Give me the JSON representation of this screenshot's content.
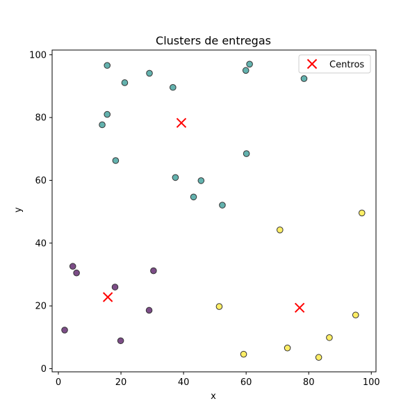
{
  "chart_data": {
    "type": "scatter",
    "title": "Clusters de entregas",
    "xlabel": "x",
    "ylabel": "y",
    "xlim": [
      -2,
      101.5
    ],
    "ylim": [
      -1,
      101.5
    ],
    "xticks": [
      0,
      20,
      40,
      60,
      80,
      100
    ],
    "yticks": [
      0,
      20,
      40,
      60,
      80,
      100
    ],
    "xtick_labels": [
      "0",
      "20",
      "40",
      "60",
      "80",
      "100"
    ],
    "ytick_labels": [
      "0",
      "20",
      "40",
      "60",
      "80",
      "100"
    ],
    "grid": false,
    "legend": {
      "placement": "upper-right",
      "entries": [
        {
          "label": "Centros",
          "marker": "x",
          "color": "#ff0000"
        }
      ]
    },
    "cluster_colors": [
      "#440154",
      "#21918c",
      "#fde725"
    ],
    "points": [
      {
        "x": 2.0,
        "y": 12.3,
        "cluster": 0
      },
      {
        "x": 4.6,
        "y": 32.6,
        "cluster": 0
      },
      {
        "x": 5.8,
        "y": 30.5,
        "cluster": 0
      },
      {
        "x": 18.1,
        "y": 26.0,
        "cluster": 0
      },
      {
        "x": 19.9,
        "y": 8.9,
        "cluster": 0
      },
      {
        "x": 29.0,
        "y": 18.6,
        "cluster": 0
      },
      {
        "x": 30.4,
        "y": 31.2,
        "cluster": 0
      },
      {
        "x": 15.6,
        "y": 96.6,
        "cluster": 1
      },
      {
        "x": 21.2,
        "y": 91.1,
        "cluster": 1
      },
      {
        "x": 29.1,
        "y": 94.1,
        "cluster": 1
      },
      {
        "x": 36.6,
        "y": 89.6,
        "cluster": 1
      },
      {
        "x": 59.9,
        "y": 95.0,
        "cluster": 1
      },
      {
        "x": 61.1,
        "y": 97.0,
        "cluster": 1
      },
      {
        "x": 78.5,
        "y": 92.4,
        "cluster": 1
      },
      {
        "x": 15.6,
        "y": 81.0,
        "cluster": 1
      },
      {
        "x": 14.0,
        "y": 77.7,
        "cluster": 1
      },
      {
        "x": 18.3,
        "y": 66.3,
        "cluster": 1
      },
      {
        "x": 60.1,
        "y": 68.5,
        "cluster": 1
      },
      {
        "x": 37.4,
        "y": 60.9,
        "cluster": 1
      },
      {
        "x": 45.6,
        "y": 59.9,
        "cluster": 1
      },
      {
        "x": 43.2,
        "y": 54.7,
        "cluster": 1
      },
      {
        "x": 52.4,
        "y": 52.1,
        "cluster": 1
      },
      {
        "x": 70.8,
        "y": 44.2,
        "cluster": 2
      },
      {
        "x": 97.0,
        "y": 49.6,
        "cluster": 2
      },
      {
        "x": 51.4,
        "y": 19.8,
        "cluster": 2
      },
      {
        "x": 95.0,
        "y": 17.1,
        "cluster": 2
      },
      {
        "x": 86.6,
        "y": 9.9,
        "cluster": 2
      },
      {
        "x": 73.2,
        "y": 6.6,
        "cluster": 2
      },
      {
        "x": 59.2,
        "y": 4.6,
        "cluster": 2
      },
      {
        "x": 83.2,
        "y": 3.6,
        "cluster": 2
      }
    ],
    "centers": [
      {
        "x": 39.3,
        "y": 78.3
      },
      {
        "x": 15.8,
        "y": 22.8
      },
      {
        "x": 77.1,
        "y": 19.4
      }
    ]
  }
}
